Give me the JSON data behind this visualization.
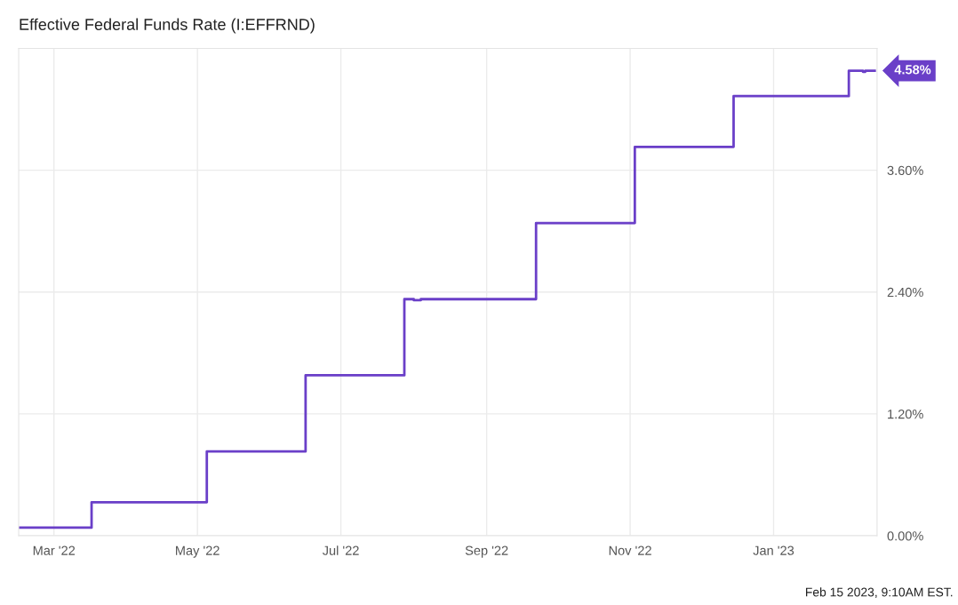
{
  "chart_data": {
    "type": "step",
    "title": "Effective Federal Funds Rate (I:EFFRND)",
    "series": [
      {
        "color": "#6a3fc8",
        "x": [
          "2022-02-14",
          "2022-03-17",
          "2022-05-05",
          "2022-06-16",
          "2022-07-28",
          "2022-08-01",
          "2022-08-04",
          "2022-09-22",
          "2022-11-03",
          "2022-12-15",
          "2023-02-02",
          "2023-02-08",
          "2023-02-09",
          "2023-02-13"
        ],
        "values": [
          0.08,
          0.33,
          0.83,
          1.58,
          2.33,
          2.32,
          2.33,
          3.08,
          3.83,
          4.33,
          4.58,
          4.57,
          4.58,
          4.58
        ]
      }
    ],
    "xlim": [
      "2022-02-14",
      "2023-02-14"
    ],
    "xticks": [
      {
        "value": "2022-03-01",
        "label": "Mar '22"
      },
      {
        "value": "2022-05-01",
        "label": "May '22"
      },
      {
        "value": "2022-07-01",
        "label": "Jul '22"
      },
      {
        "value": "2022-09-01",
        "label": "Sep '22"
      },
      {
        "value": "2022-11-01",
        "label": "Nov '22"
      },
      {
        "value": "2023-01-01",
        "label": "Jan '23"
      }
    ],
    "ylim": [
      0,
      4.8
    ],
    "yticks": [
      {
        "value": 0,
        "label": "0.00%"
      },
      {
        "value": 1.2,
        "label": "1.20%"
      },
      {
        "value": 2.4,
        "label": "2.40%"
      },
      {
        "value": 3.6,
        "label": "3.60%"
      }
    ],
    "grid": true,
    "annotations": [
      {
        "text": "4.58%",
        "x": "2023-02-14",
        "y": 4.58
      },
      "Feb 15 2023, 9:10AM EST."
    ]
  }
}
